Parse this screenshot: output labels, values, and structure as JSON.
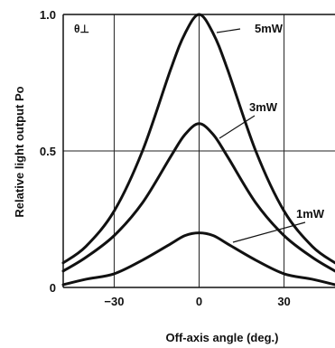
{
  "chart_data": {
    "type": "line",
    "corner_label": "θ⊥",
    "xlabel": "Off-axis angle (deg.)",
    "ylabel": "Relative light output Po",
    "xlim": [
      -48,
      48
    ],
    "ylim": [
      0,
      1.0
    ],
    "xticks": [
      -30,
      0,
      30
    ],
    "xtick_labels": [
      "−30",
      "0",
      "30"
    ],
    "yticks": [
      0,
      0.5,
      1.0
    ],
    "ytick_labels": [
      "0",
      "0.5",
      "1.0"
    ],
    "grid": true,
    "series": [
      {
        "name": "5mW",
        "x": [
          -48,
          -40,
          -30,
          -20,
          -10,
          -5,
          0,
          5,
          10,
          20,
          30,
          40,
          48
        ],
        "y": [
          0.09,
          0.15,
          0.28,
          0.5,
          0.8,
          0.93,
          1.0,
          0.93,
          0.8,
          0.5,
          0.28,
          0.15,
          0.09
        ]
      },
      {
        "name": "3mW",
        "x": [
          -48,
          -40,
          -30,
          -20,
          -10,
          -5,
          0,
          5,
          10,
          20,
          30,
          40,
          48
        ],
        "y": [
          0.06,
          0.11,
          0.19,
          0.31,
          0.48,
          0.56,
          0.6,
          0.56,
          0.48,
          0.31,
          0.19,
          0.11,
          0.06
        ]
      },
      {
        "name": "1mW",
        "x": [
          -48,
          -40,
          -30,
          -20,
          -10,
          -5,
          0,
          5,
          10,
          20,
          30,
          40,
          48
        ],
        "y": [
          0.01,
          0.03,
          0.05,
          0.1,
          0.16,
          0.19,
          0.2,
          0.19,
          0.16,
          0.1,
          0.05,
          0.03,
          0.01
        ]
      }
    ]
  }
}
